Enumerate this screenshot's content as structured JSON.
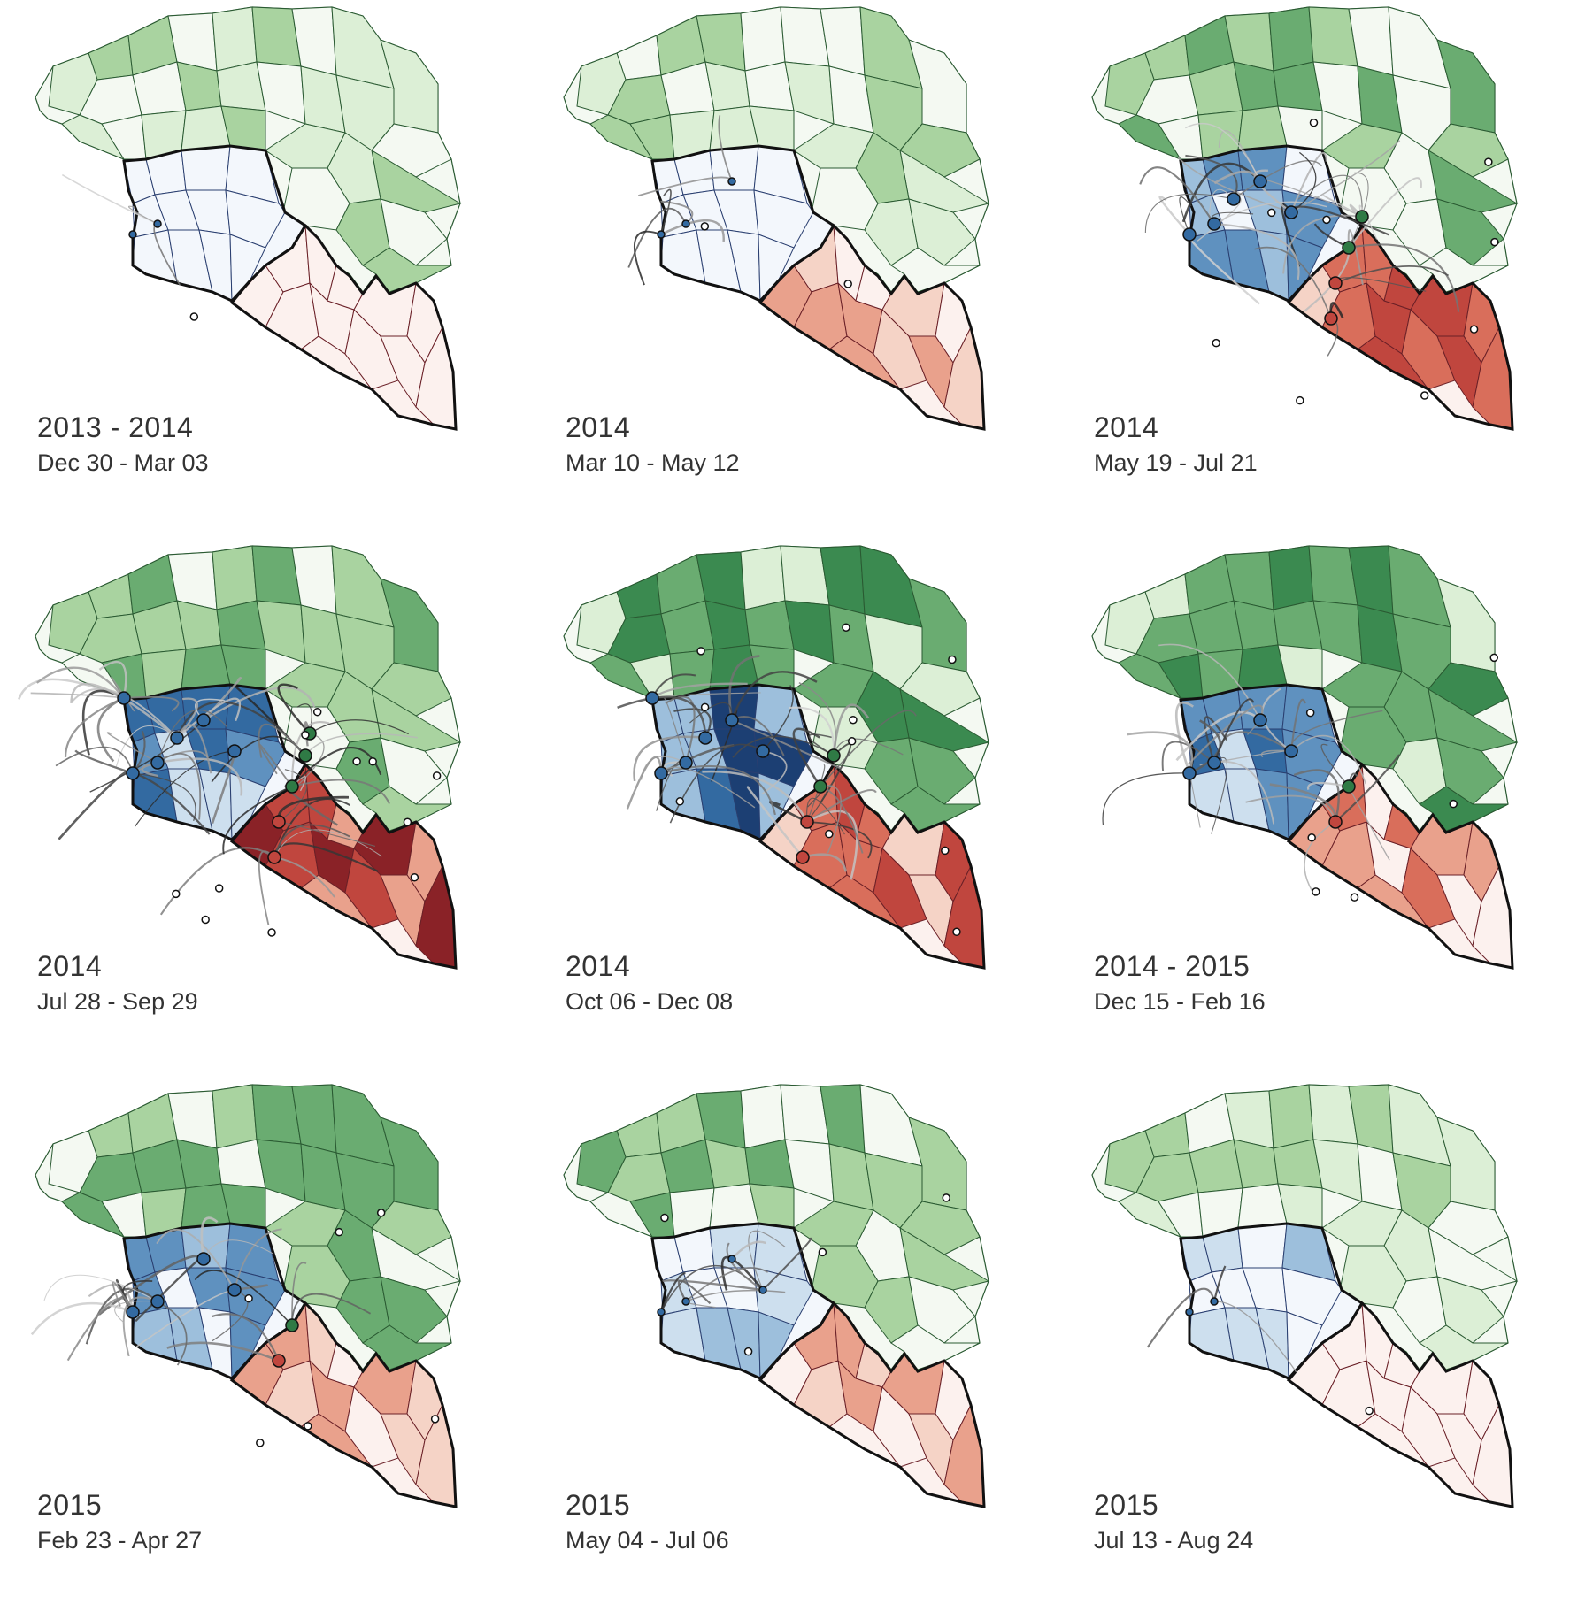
{
  "colors": {
    "guinea": [
      "#f4f9f2",
      "#dcefd6",
      "#a9d3a0",
      "#6aac71",
      "#3b8a50",
      "#1c5e2f"
    ],
    "sierra_leone": [
      "#f3f7fc",
      "#cddfee",
      "#9dbfdc",
      "#5f91bf",
      "#336aa1",
      "#1c3f73"
    ],
    "liberia": [
      "#fcf1ee",
      "#f5d3c6",
      "#e9a18c",
      "#d96e5b",
      "#c0463e",
      "#8a2227"
    ],
    "guinea_border": "#2a5a32",
    "sierra_leone_border": "#2a3f70",
    "liberia_border": "#6a2027",
    "country_border": "#111111"
  },
  "panels": [
    {
      "year": "2013 - 2014",
      "dates": "Dec 30 - Mar 03",
      "intensity": {
        "guinea": 1,
        "sierra_leone": 0,
        "liberia": 0
      },
      "lines": 3,
      "markers": 3
    },
    {
      "year": "2014",
      "dates": "Mar 10 - May 12",
      "intensity": {
        "guinea": 1,
        "sierra_leone": 0,
        "liberia": 1
      },
      "lines": 7,
      "markers": 5
    },
    {
      "year": "2014",
      "dates": "May 19 - Jul 21",
      "intensity": {
        "guinea": 2,
        "sierra_leone": 2,
        "liberia": 3
      },
      "lines": 40,
      "markers": 18
    },
    {
      "year": "2014",
      "dates": "Jul 28 - Sep 29",
      "intensity": {
        "guinea": 2,
        "sierra_leone": 3,
        "liberia": 4
      },
      "lines": 60,
      "markers": 22
    },
    {
      "year": "2014",
      "dates": "Oct 06 - Dec 08",
      "intensity": {
        "guinea": 3,
        "sierra_leone": 4,
        "liberia": 3
      },
      "lines": 45,
      "markers": 20
    },
    {
      "year": "2014 - 2015",
      "dates": "Dec 15 - Feb 16",
      "intensity": {
        "guinea": 3,
        "sierra_leone": 3,
        "liberia": 2
      },
      "lines": 30,
      "markers": 12
    },
    {
      "year": "2015",
      "dates": "Feb 23 - Apr 27",
      "intensity": {
        "guinea": 2,
        "sierra_leone": 2,
        "liberia": 1
      },
      "lines": 25,
      "markers": 12
    },
    {
      "year": "2015",
      "dates": "May 04 - Jul 06",
      "intensity": {
        "guinea": 2,
        "sierra_leone": 1,
        "liberia": 1
      },
      "lines": 12,
      "markers": 8
    },
    {
      "year": "2015",
      "dates": "Jul 13 - Aug 24",
      "intensity": {
        "guinea": 1,
        "sierra_leone": 1,
        "liberia": 0
      },
      "lines": 3,
      "markers": 3
    }
  ]
}
